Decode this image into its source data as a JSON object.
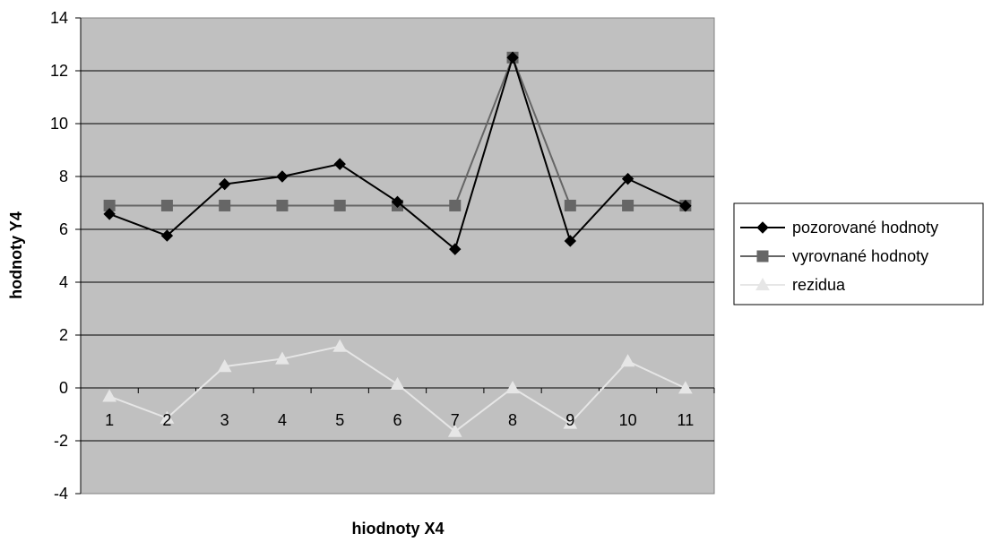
{
  "chart_data": {
    "type": "line",
    "title": "",
    "xlabel": "hiodnoty X4",
    "ylabel": "hodnoty Y4",
    "categories": [
      "1",
      "2",
      "3",
      "4",
      "5",
      "6",
      "7",
      "8",
      "9",
      "10",
      "11"
    ],
    "ylim": [
      -4,
      14
    ],
    "yticks": [
      "-4",
      "-2",
      "0",
      "2",
      "4",
      "6",
      "8",
      "10",
      "12",
      "14"
    ],
    "grid": true,
    "legend_position": "right",
    "plot_background": "#c0c0c0",
    "series": [
      {
        "name": "pozorované hodnoty",
        "marker": "diamond",
        "color": "#000000",
        "values": [
          6.58,
          5.76,
          7.71,
          8.0,
          8.47,
          7.04,
          5.25,
          12.5,
          5.56,
          7.91,
          6.89
        ]
      },
      {
        "name": "vyrovnané hodnoty",
        "marker": "square",
        "color": "#666666",
        "values": [
          6.9,
          6.9,
          6.9,
          6.9,
          6.9,
          6.9,
          6.9,
          12.5,
          6.9,
          6.9,
          6.9
        ]
      },
      {
        "name": "rezidua",
        "marker": "triangle",
        "color": "#e6e6e6",
        "values": [
          -0.32,
          -1.14,
          0.81,
          1.1,
          1.57,
          0.14,
          -1.65,
          0.0,
          -1.34,
          1.01,
          -0.01
        ]
      }
    ]
  }
}
